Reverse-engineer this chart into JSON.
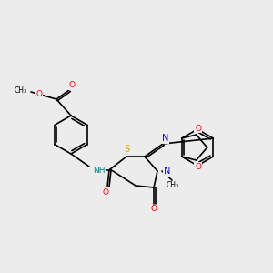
{
  "background_color": "#ececec",
  "bond_color": "#000000",
  "atom_colors": {
    "O": "#ff0000",
    "N": "#0000ff",
    "S": "#ccaa00",
    "NH": "#008080",
    "C": "#000000"
  },
  "figsize": [
    3.0,
    3.0
  ],
  "dpi": 100,
  "lw": 1.2
}
